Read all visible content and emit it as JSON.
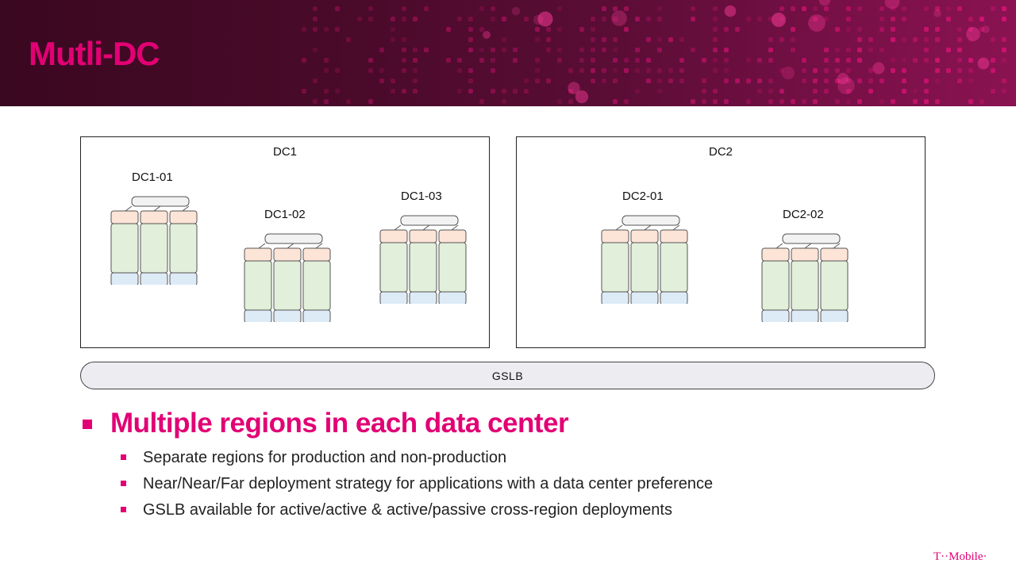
{
  "slide": {
    "title": "Mutli-DC"
  },
  "diagram": {
    "datacenters": [
      {
        "label": "DC1",
        "regions": [
          "DC1-01",
          "DC1-02",
          "DC1-03"
        ]
      },
      {
        "label": "DC2",
        "regions": [
          "DC2-01",
          "DC2-02"
        ]
      }
    ],
    "gslb_label": "GSLB",
    "colors": {
      "top": "#fce4d6",
      "middle": "#e2efda",
      "bottom": "#ddebf7",
      "bar": "#f2f2f2"
    }
  },
  "content": {
    "heading": "Multiple regions in each data center",
    "bullets": [
      "Separate regions for production and non-production",
      "Near/Near/Far deployment strategy for applications with a data center preference",
      "GSLB available for active/active & active/passive cross-region deployments"
    ]
  },
  "footer": {
    "logo_text": "T··Mobile·"
  },
  "accent_color": "#e20074"
}
